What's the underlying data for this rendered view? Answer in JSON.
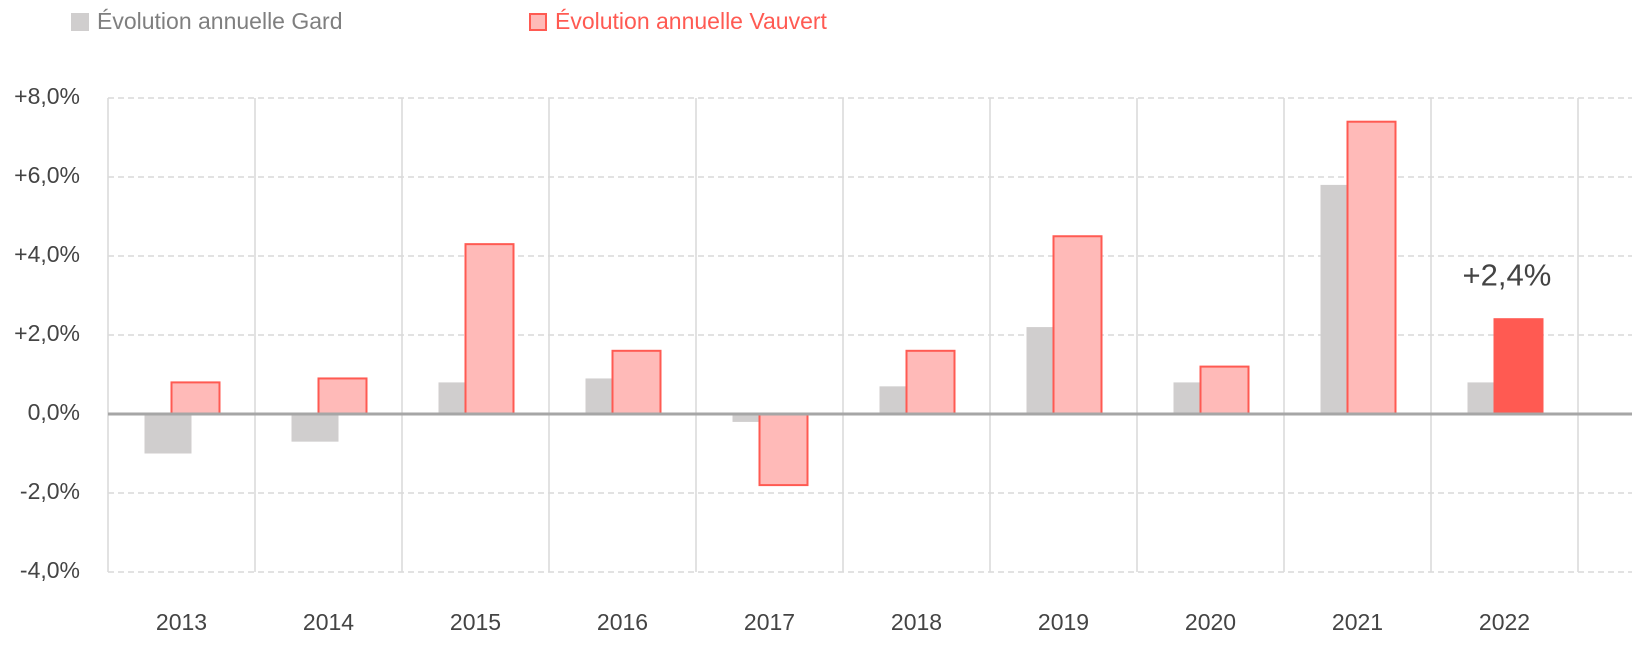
{
  "chart_data": {
    "type": "bar",
    "categories": [
      "2013",
      "2014",
      "2015",
      "2016",
      "2017",
      "2018",
      "2019",
      "2020",
      "2021",
      "2022"
    ],
    "series": [
      {
        "name": "Évolution annuelle Gard",
        "color": "#d0cece",
        "values": [
          -1.0,
          -0.7,
          0.8,
          0.9,
          -0.2,
          0.7,
          2.2,
          0.8,
          5.8,
          0.8
        ]
      },
      {
        "name": "Évolution annuelle Vauvert",
        "color": "#ffbab8",
        "edge_color": "#ff5a52",
        "values": [
          0.8,
          0.9,
          4.3,
          1.6,
          -1.8,
          1.6,
          4.5,
          1.2,
          7.4,
          2.4
        ],
        "value_labels": [
          null,
          null,
          null,
          null,
          null,
          null,
          null,
          null,
          null,
          "+2,4%"
        ],
        "highlight": {
          "index": 9,
          "color": "#ff5a52"
        }
      }
    ],
    "ylim": [
      -4,
      8
    ],
    "yticks": [
      {
        "value": -4,
        "label": "-4,0%"
      },
      {
        "value": -2,
        "label": "-2,0%"
      },
      {
        "value": 0,
        "label": "0,0%"
      },
      {
        "value": 2,
        "label": "+2,0%"
      },
      {
        "value": 4,
        "label": "+4,0%"
      },
      {
        "value": 6,
        "label": "+6,0%"
      },
      {
        "value": 8,
        "label": "+8,0%"
      }
    ],
    "grid": true,
    "legend": "top-left"
  }
}
